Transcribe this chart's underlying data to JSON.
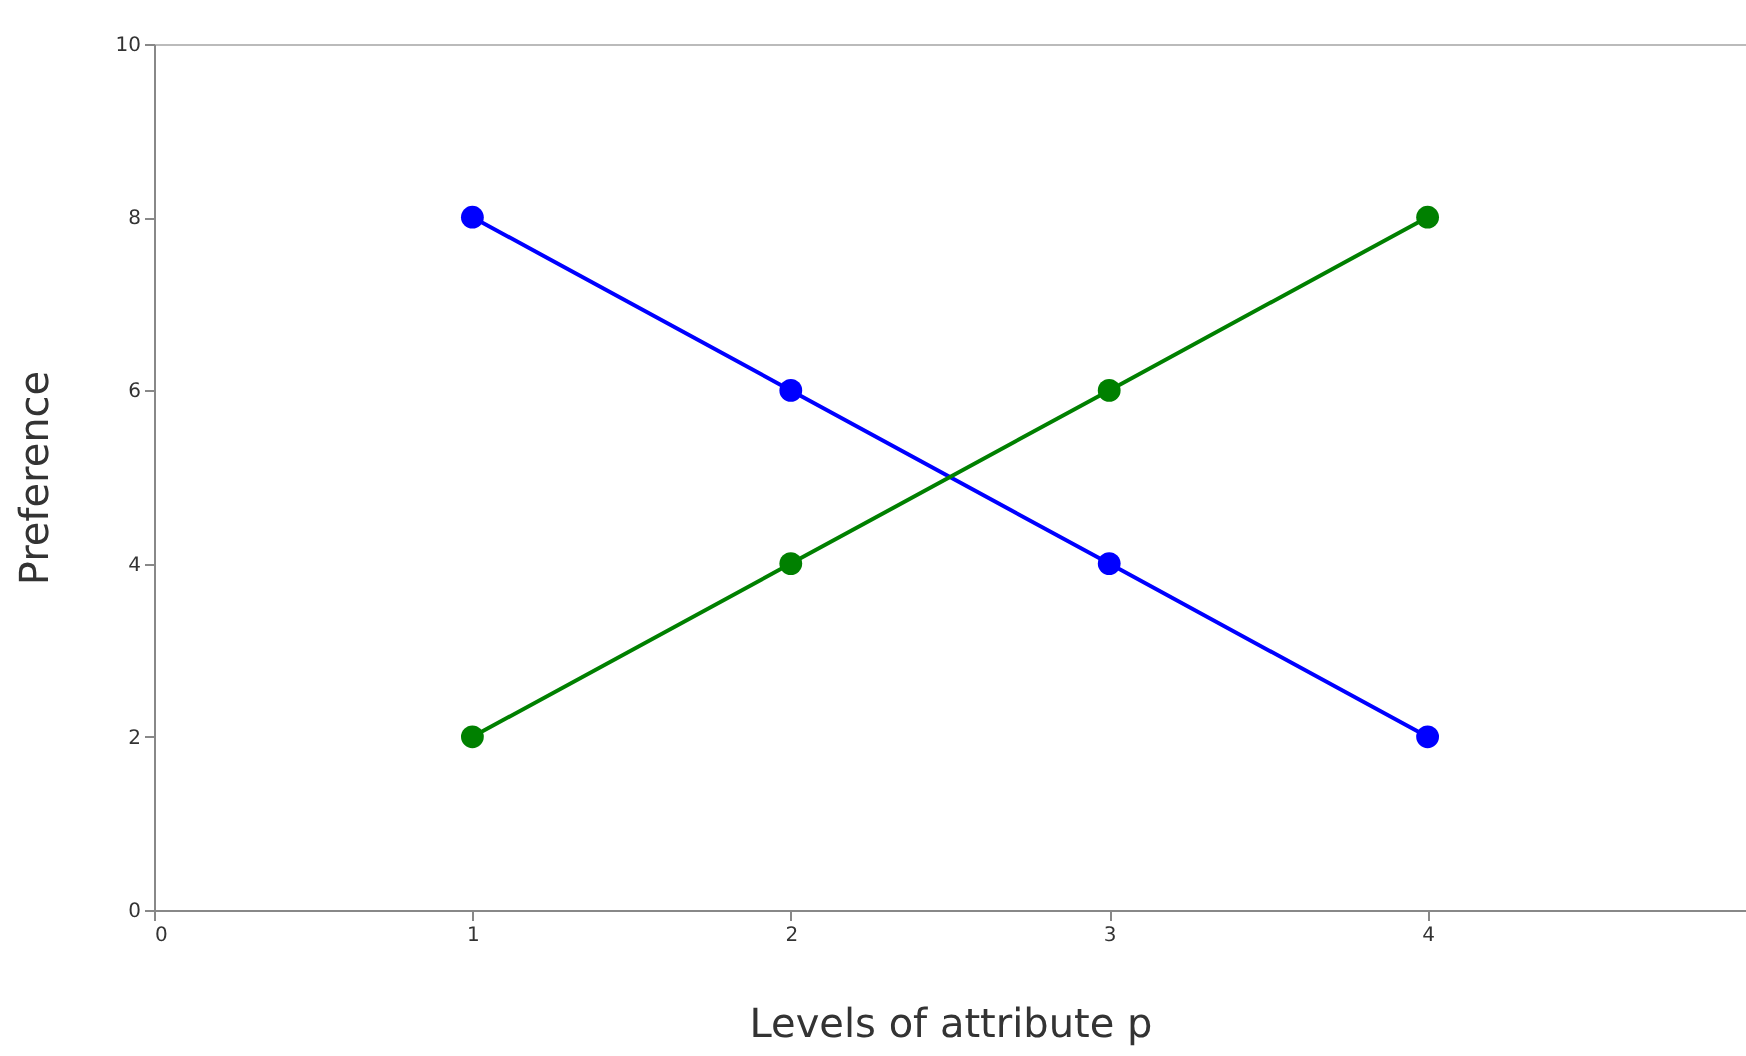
{
  "chart_data": {
    "type": "line",
    "xlabel": "Levels of attribute p",
    "ylabel": "Preference",
    "x": [
      1,
      2,
      3,
      4
    ],
    "series": [
      {
        "color": "#0000ff",
        "values": [
          8,
          6,
          4,
          2
        ]
      },
      {
        "color": "#008000",
        "values": [
          2,
          4,
          6,
          8
        ]
      }
    ],
    "xlim": [
      0,
      5
    ],
    "xticks": [
      0,
      1,
      2,
      3,
      4
    ],
    "ylim": [
      0,
      10
    ],
    "yticks": [
      0,
      2,
      4,
      6,
      8,
      10
    ],
    "grid": false,
    "marker": "circle",
    "line_style": "solid"
  }
}
